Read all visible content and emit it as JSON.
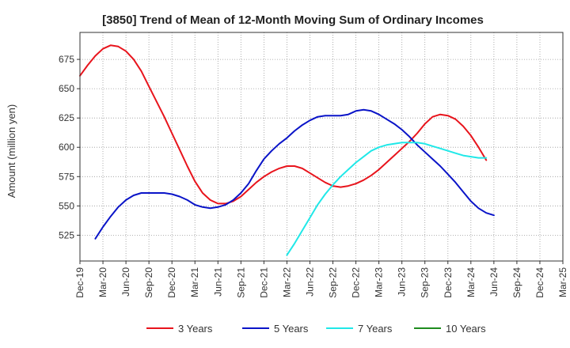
{
  "chart_data": {
    "type": "line",
    "title": "[3850]  Trend of Mean of 12-Month Moving Sum of Ordinary Incomes",
    "xlabel": "",
    "ylabel": "Amount (million yen)",
    "ylim": [
      503,
      698
    ],
    "yticks": [
      525,
      550,
      575,
      600,
      625,
      650,
      675
    ],
    "grid": true,
    "legend_position": "bottom",
    "x_start": "Dec-19",
    "x_tick_labels": [
      "Dec-19",
      "Mar-20",
      "Jun-20",
      "Sep-20",
      "Dec-20",
      "Mar-21",
      "Jun-21",
      "Sep-21",
      "Dec-21",
      "Mar-22",
      "Jun-22",
      "Sep-22",
      "Dec-22",
      "Mar-23",
      "Jun-23",
      "Sep-23",
      "Dec-23",
      "Mar-24",
      "Jun-24",
      "Sep-24",
      "Dec-24",
      "Mar-25"
    ],
    "series": [
      {
        "name": "3 Years",
        "color": "#e8141c",
        "start_month": 0,
        "values": [
          661,
          670,
          678,
          684,
          687,
          686,
          682,
          675,
          665,
          652,
          639,
          626,
          612,
          598,
          584,
          571,
          561,
          555,
          552,
          552,
          554,
          558,
          564,
          570,
          575,
          579,
          582,
          584,
          584,
          582,
          578,
          574,
          570,
          567,
          566,
          567,
          569,
          572,
          576,
          581,
          587,
          593,
          599,
          605,
          612,
          620,
          626,
          628,
          627,
          624,
          618,
          610,
          600,
          589
        ]
      },
      {
        "name": "5 Years",
        "color": "#0a14c8",
        "start_month": 2,
        "values": [
          522,
          532,
          541,
          549,
          555,
          559,
          561,
          561,
          561,
          561,
          560,
          558,
          555,
          551,
          549,
          548,
          549,
          551,
          555,
          561,
          569,
          580,
          590,
          597,
          603,
          608,
          614,
          619,
          623,
          626,
          627,
          627,
          627,
          628,
          631,
          632,
          631,
          628,
          624,
          620,
          615,
          609,
          602,
          596,
          590,
          584,
          577,
          570,
          562,
          554,
          548,
          544,
          542
        ]
      },
      {
        "name": "7 Years",
        "color": "#20e8e8",
        "start_month": 27,
        "values": [
          508,
          518,
          529,
          540,
          551,
          560,
          568,
          575,
          581,
          587,
          592,
          597,
          600,
          602,
          603,
          604,
          604,
          604,
          603,
          601,
          599,
          597,
          595,
          593,
          592,
          591,
          591
        ]
      },
      {
        "name": "10 Years",
        "color": "#1e8c1e",
        "start_month": 0,
        "values": []
      }
    ]
  }
}
